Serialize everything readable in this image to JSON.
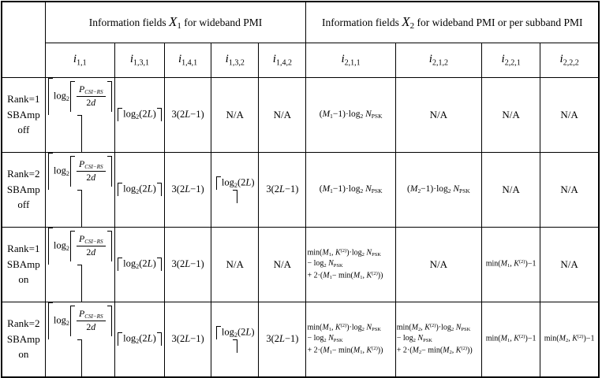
{
  "colors": {
    "border": "#000000",
    "text": "#000000",
    "background": "#ffffff"
  },
  "title_row": {
    "x1": {
      "segs": [
        [
          "t",
          "Information fields "
        ],
        [
          "I",
          "X"
        ],
        [
          "Is",
          "1"
        ],
        [
          "t",
          " for wideband PMI"
        ]
      ]
    },
    "x2": {
      "segs": [
        [
          "t",
          "Information fields "
        ],
        [
          "I",
          "X"
        ],
        [
          "Is",
          "2"
        ],
        [
          "t",
          " for wideband PMI or per subband PMI"
        ]
      ]
    }
  },
  "columns": [
    {
      "id": "i11",
      "segs": [
        [
          "ci",
          "i"
        ],
        [
          "cs",
          "1,1"
        ]
      ]
    },
    {
      "id": "i131",
      "segs": [
        [
          "ci",
          "i"
        ],
        [
          "cs",
          "1,3,1"
        ]
      ]
    },
    {
      "id": "i141",
      "segs": [
        [
          "ci",
          "i"
        ],
        [
          "cs",
          "1,4,1"
        ]
      ]
    },
    {
      "id": "i132",
      "segs": [
        [
          "ci",
          "i"
        ],
        [
          "cs",
          "1,3,2"
        ]
      ]
    },
    {
      "id": "i142",
      "segs": [
        [
          "ci",
          "i"
        ],
        [
          "cs",
          "1,4,2"
        ]
      ]
    },
    {
      "id": "i211",
      "segs": [
        [
          "ci",
          "i"
        ],
        [
          "cs",
          "2,1,1"
        ]
      ]
    },
    {
      "id": "i212",
      "segs": [
        [
          "ci",
          "i"
        ],
        [
          "cs",
          "2,1,2"
        ]
      ]
    },
    {
      "id": "i221",
      "segs": [
        [
          "ci",
          "i"
        ],
        [
          "cs",
          "2,2,1"
        ]
      ]
    },
    {
      "id": "i222",
      "segs": [
        [
          "ci",
          "i"
        ],
        [
          "cs",
          "2,2,2"
        ]
      ]
    }
  ],
  "formulas": {
    "na": [
      [
        "t",
        "N/A"
      ]
    ],
    "ceil_log_p": [
      [
        "C",
        "h1"
      ],
      [
        "t",
        "log"
      ],
      [
        "b",
        "2"
      ],
      [
        "C",
        "h2"
      ],
      [
        "F",
        [
          [
            "i",
            "P"
          ],
          [
            "bi",
            "CSI−RS"
          ]
        ],
        [
          [
            "t",
            "2"
          ],
          [
            "i",
            "d"
          ]
        ]
      ],
      [
        "D",
        "h2"
      ],
      [
        "D",
        "h1"
      ]
    ],
    "ceil_log_2l": [
      [
        "C",
        "h3"
      ],
      [
        "t",
        "log"
      ],
      [
        "b",
        "2"
      ],
      [
        "t",
        "(2"
      ],
      [
        "i",
        "L"
      ],
      [
        "t",
        ")"
      ],
      [
        "D",
        "h3"
      ]
    ],
    "lin_2l": [
      [
        "t",
        "3(2"
      ],
      [
        "i",
        "L"
      ],
      [
        "t",
        "−1)"
      ]
    ],
    "m_1": [
      [
        "t",
        "("
      ],
      [
        "i",
        "M"
      ],
      [
        "b",
        "1"
      ],
      [
        "t",
        "−1)·log"
      ],
      [
        "b",
        "2"
      ],
      [
        "t",
        " "
      ],
      [
        "i",
        "N"
      ],
      [
        "b",
        "PSK"
      ]
    ],
    "m_2": [
      [
        "t",
        "("
      ],
      [
        "i",
        "M"
      ],
      [
        "b",
        "2"
      ],
      [
        "t",
        "−1)·log"
      ],
      [
        "b",
        "2"
      ],
      [
        "t",
        " "
      ],
      [
        "i",
        "N"
      ],
      [
        "b",
        "PSK"
      ]
    ],
    "min3_1": [
      [
        "t",
        "min("
      ],
      [
        "i",
        "M"
      ],
      [
        "b",
        "1"
      ],
      [
        "t",
        ", "
      ],
      [
        "i",
        "K"
      ],
      [
        "p",
        "(2)"
      ],
      [
        "t",
        ")·log"
      ],
      [
        "b",
        "2"
      ],
      [
        "t",
        " "
      ],
      [
        "i",
        "N"
      ],
      [
        "b",
        "PSK"
      ],
      [
        "br"
      ],
      [
        "t",
        "− log"
      ],
      [
        "b",
        "2"
      ],
      [
        "t",
        " "
      ],
      [
        "i",
        "N"
      ],
      [
        "b",
        "PSK"
      ],
      [
        "br"
      ],
      [
        "t",
        "+ 2·("
      ],
      [
        "i",
        "M"
      ],
      [
        "b",
        "1"
      ],
      [
        "t",
        "− min("
      ],
      [
        "i",
        "M"
      ],
      [
        "b",
        "1"
      ],
      [
        "t",
        ", "
      ],
      [
        "i",
        "K"
      ],
      [
        "p",
        "(2)"
      ],
      [
        "t",
        "))"
      ]
    ],
    "min3_2": [
      [
        "t",
        "min("
      ],
      [
        "i",
        "M"
      ],
      [
        "b",
        "2"
      ],
      [
        "t",
        ", "
      ],
      [
        "i",
        "K"
      ],
      [
        "p",
        "(2)"
      ],
      [
        "t",
        ")·log"
      ],
      [
        "b",
        "2"
      ],
      [
        "t",
        " "
      ],
      [
        "i",
        "N"
      ],
      [
        "b",
        "PSK"
      ],
      [
        "br"
      ],
      [
        "t",
        "− log"
      ],
      [
        "b",
        "2"
      ],
      [
        "t",
        " "
      ],
      [
        "i",
        "N"
      ],
      [
        "b",
        "PSK"
      ],
      [
        "br"
      ],
      [
        "t",
        "+ 2·("
      ],
      [
        "i",
        "M"
      ],
      [
        "b",
        "2"
      ],
      [
        "t",
        "− min("
      ],
      [
        "i",
        "M"
      ],
      [
        "b",
        "2"
      ],
      [
        "t",
        ", "
      ],
      [
        "i",
        "K"
      ],
      [
        "p",
        "(2)"
      ],
      [
        "t",
        "))"
      ]
    ],
    "mins_1": [
      [
        "t",
        "min("
      ],
      [
        "i",
        "M"
      ],
      [
        "b",
        "1"
      ],
      [
        "t",
        ", "
      ],
      [
        "i",
        "K"
      ],
      [
        "p",
        "(2)"
      ],
      [
        "t",
        ")−1"
      ]
    ],
    "mins_2": [
      [
        "t",
        "min("
      ],
      [
        "i",
        "M"
      ],
      [
        "b",
        "2"
      ],
      [
        "t",
        ", "
      ],
      [
        "i",
        "K"
      ],
      [
        "p",
        "(2)"
      ],
      [
        "t",
        ")−1"
      ]
    ]
  },
  "rows": [
    {
      "label_lines": [
        "Rank=1",
        "SBAmp",
        "off"
      ],
      "cells": [
        "ceil_log_p",
        "ceil_log_2l",
        "lin_2l",
        "na",
        "na",
        "m_1",
        "na",
        "na",
        "na"
      ]
    },
    {
      "label_lines": [
        "Rank=2",
        "SBAmp",
        "off"
      ],
      "cells": [
        "ceil_log_p",
        "ceil_log_2l",
        "lin_2l",
        "ceil_log_2l",
        "lin_2l",
        "m_1",
        "m_2",
        "na",
        "na"
      ]
    },
    {
      "label_lines": [
        "Rank=1",
        "SBAmp",
        "on"
      ],
      "cells": [
        "ceil_log_p",
        "ceil_log_2l",
        "lin_2l",
        "na",
        "na",
        "min3_1",
        "na",
        "mins_1",
        "na"
      ]
    },
    {
      "label_lines": [
        "Rank=2",
        "SBAmp",
        "on"
      ],
      "cells": [
        "ceil_log_p",
        "ceil_log_2l",
        "lin_2l",
        "ceil_log_2l",
        "lin_2l",
        "min3_1",
        "min3_2",
        "mins_1",
        "mins_2"
      ]
    }
  ]
}
